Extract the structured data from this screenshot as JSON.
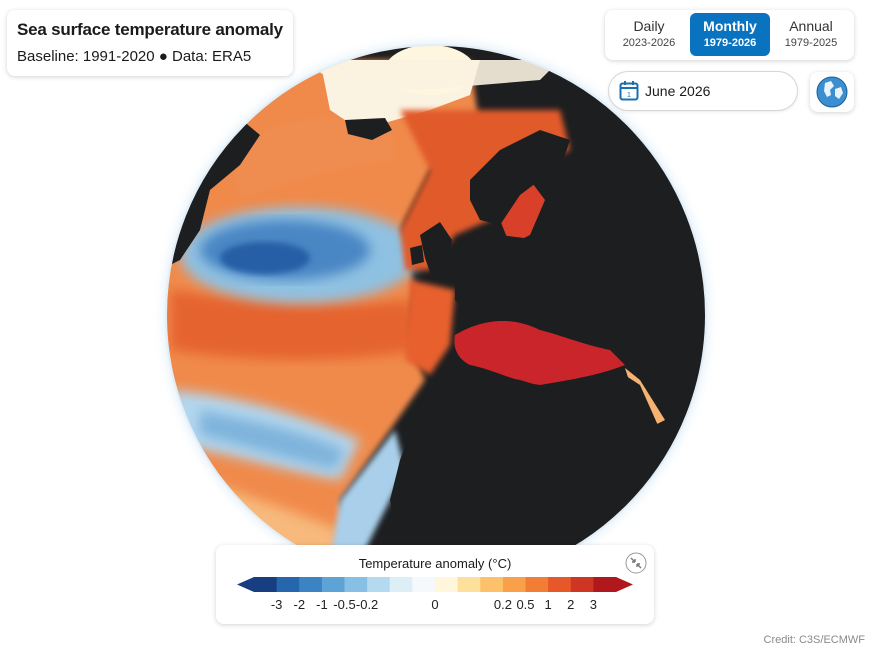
{
  "header": {
    "title": "Sea surface temperature anomaly",
    "subtitle": "Baseline: 1991-2020 ● Data: ERA5"
  },
  "periods": [
    {
      "label": "Daily",
      "range": "2023-2026",
      "active": false
    },
    {
      "label": "Monthly",
      "range": "1979-2026",
      "active": true
    },
    {
      "label": "Annual",
      "range": "1979-2025",
      "active": false
    }
  ],
  "date_picker": {
    "value": "June 2026",
    "icon": "calendar-icon"
  },
  "view_toggle": {
    "icon": "globe-icon"
  },
  "legend": {
    "title": "Temperature anomaly (°C)",
    "ticks": [
      "-3",
      "-2",
      "-1",
      "-0.5",
      "-0.2",
      "0",
      "0.2",
      "0.5",
      "1",
      "2",
      "3"
    ],
    "colors": [
      "#173e80",
      "#2566ad",
      "#3c83c4",
      "#5da3d6",
      "#87c0e4",
      "#b4daef",
      "#dceff7",
      "#f6f9fb",
      "#fff6dc",
      "#fde09c",
      "#fdc16b",
      "#f9a04a",
      "#f27d35",
      "#e6582a",
      "#cf3523",
      "#b0181d"
    ],
    "collapse_icon": "collapse-arrows-icon"
  },
  "credit": "Credit: C3S/ECMWF"
}
